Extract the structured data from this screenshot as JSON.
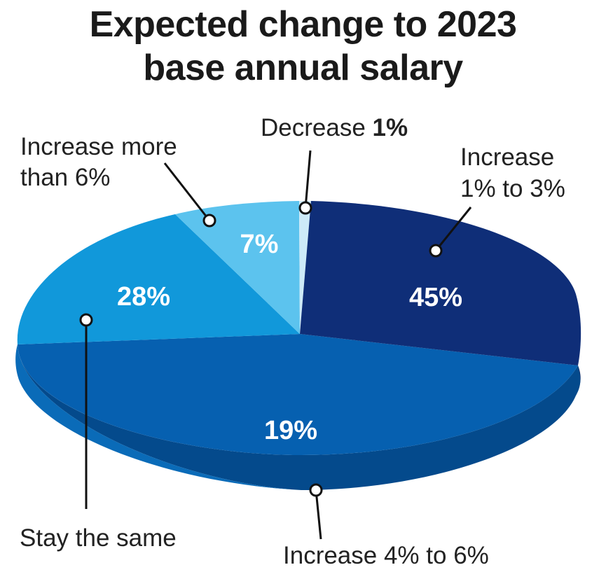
{
  "title_line1": "Expected change to 2023",
  "title_line2": "base annual salary",
  "chart_data": {
    "type": "pie",
    "title": "Expected change to 2023 base annual salary",
    "slices": [
      {
        "label": "Decrease",
        "value": 1,
        "display": "1%",
        "color": "#cdeaf8"
      },
      {
        "label": "Increase 1% to 3%",
        "value": 45,
        "display": "45%",
        "color": "#0f2e78"
      },
      {
        "label": "Increase 4% to 6%",
        "value": 19,
        "display": "19%",
        "color": "#0660b0"
      },
      {
        "label": "Stay the same",
        "value": 28,
        "display": "28%",
        "color": "#1198da"
      },
      {
        "label": "Increase more than 6%",
        "value": 7,
        "display": "7%",
        "color": "#5cc3ee"
      }
    ]
  },
  "labels": {
    "decrease_text": "Decrease ",
    "decrease_value": "1%",
    "inc13_line1": "Increase",
    "inc13_line2": "1% to 3%",
    "inc46": "Increase 4% to 6%",
    "same": "Stay the same",
    "inc6_line1": "Increase more",
    "inc6_line2": "than 6%"
  }
}
